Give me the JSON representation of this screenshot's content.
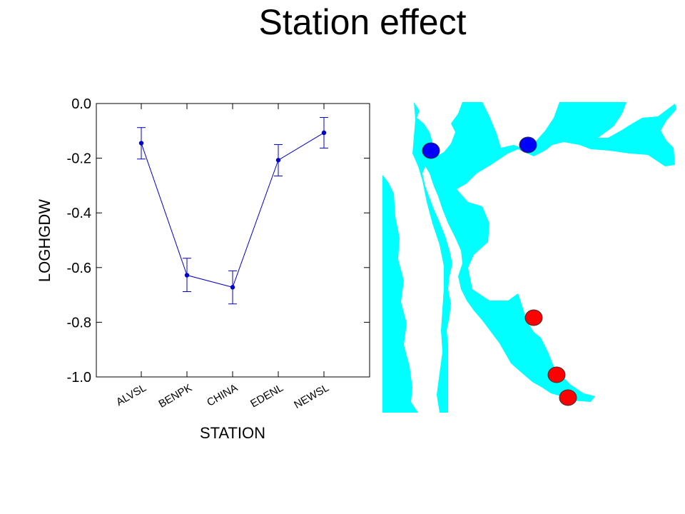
{
  "slide": {
    "title": "Station effect"
  },
  "chart_data": {
    "type": "line",
    "categories": [
      "ALVSL",
      "BENPK",
      "CHINA",
      "EDENL",
      "NEWSL"
    ],
    "series": [
      {
        "values": [
          -0.145,
          -0.628,
          -0.672,
          -0.207,
          -0.107
        ],
        "error_low": [
          -0.203,
          -0.688,
          -0.733,
          -0.265,
          -0.163
        ],
        "error_high": [
          -0.088,
          -0.566,
          -0.612,
          -0.15,
          -0.051
        ]
      }
    ],
    "xlabel": "STATION",
    "ylabel": "LOGHGDW",
    "ylim": [
      -1.0,
      0.0
    ],
    "yticks": [
      0.0,
      -0.2,
      -0.4,
      -0.6,
      -0.8,
      -1.0
    ],
    "ytick_labels": [
      "0.0",
      "-0.2",
      "-0.4",
      "-0.6",
      "-0.8",
      "-1.0"
    ],
    "grid": false,
    "line_color": "#0000cc"
  },
  "map": {
    "water_color": "#00ffff",
    "marker_colors": {
      "blue": "#0000ff",
      "red": "#ff0000"
    }
  }
}
